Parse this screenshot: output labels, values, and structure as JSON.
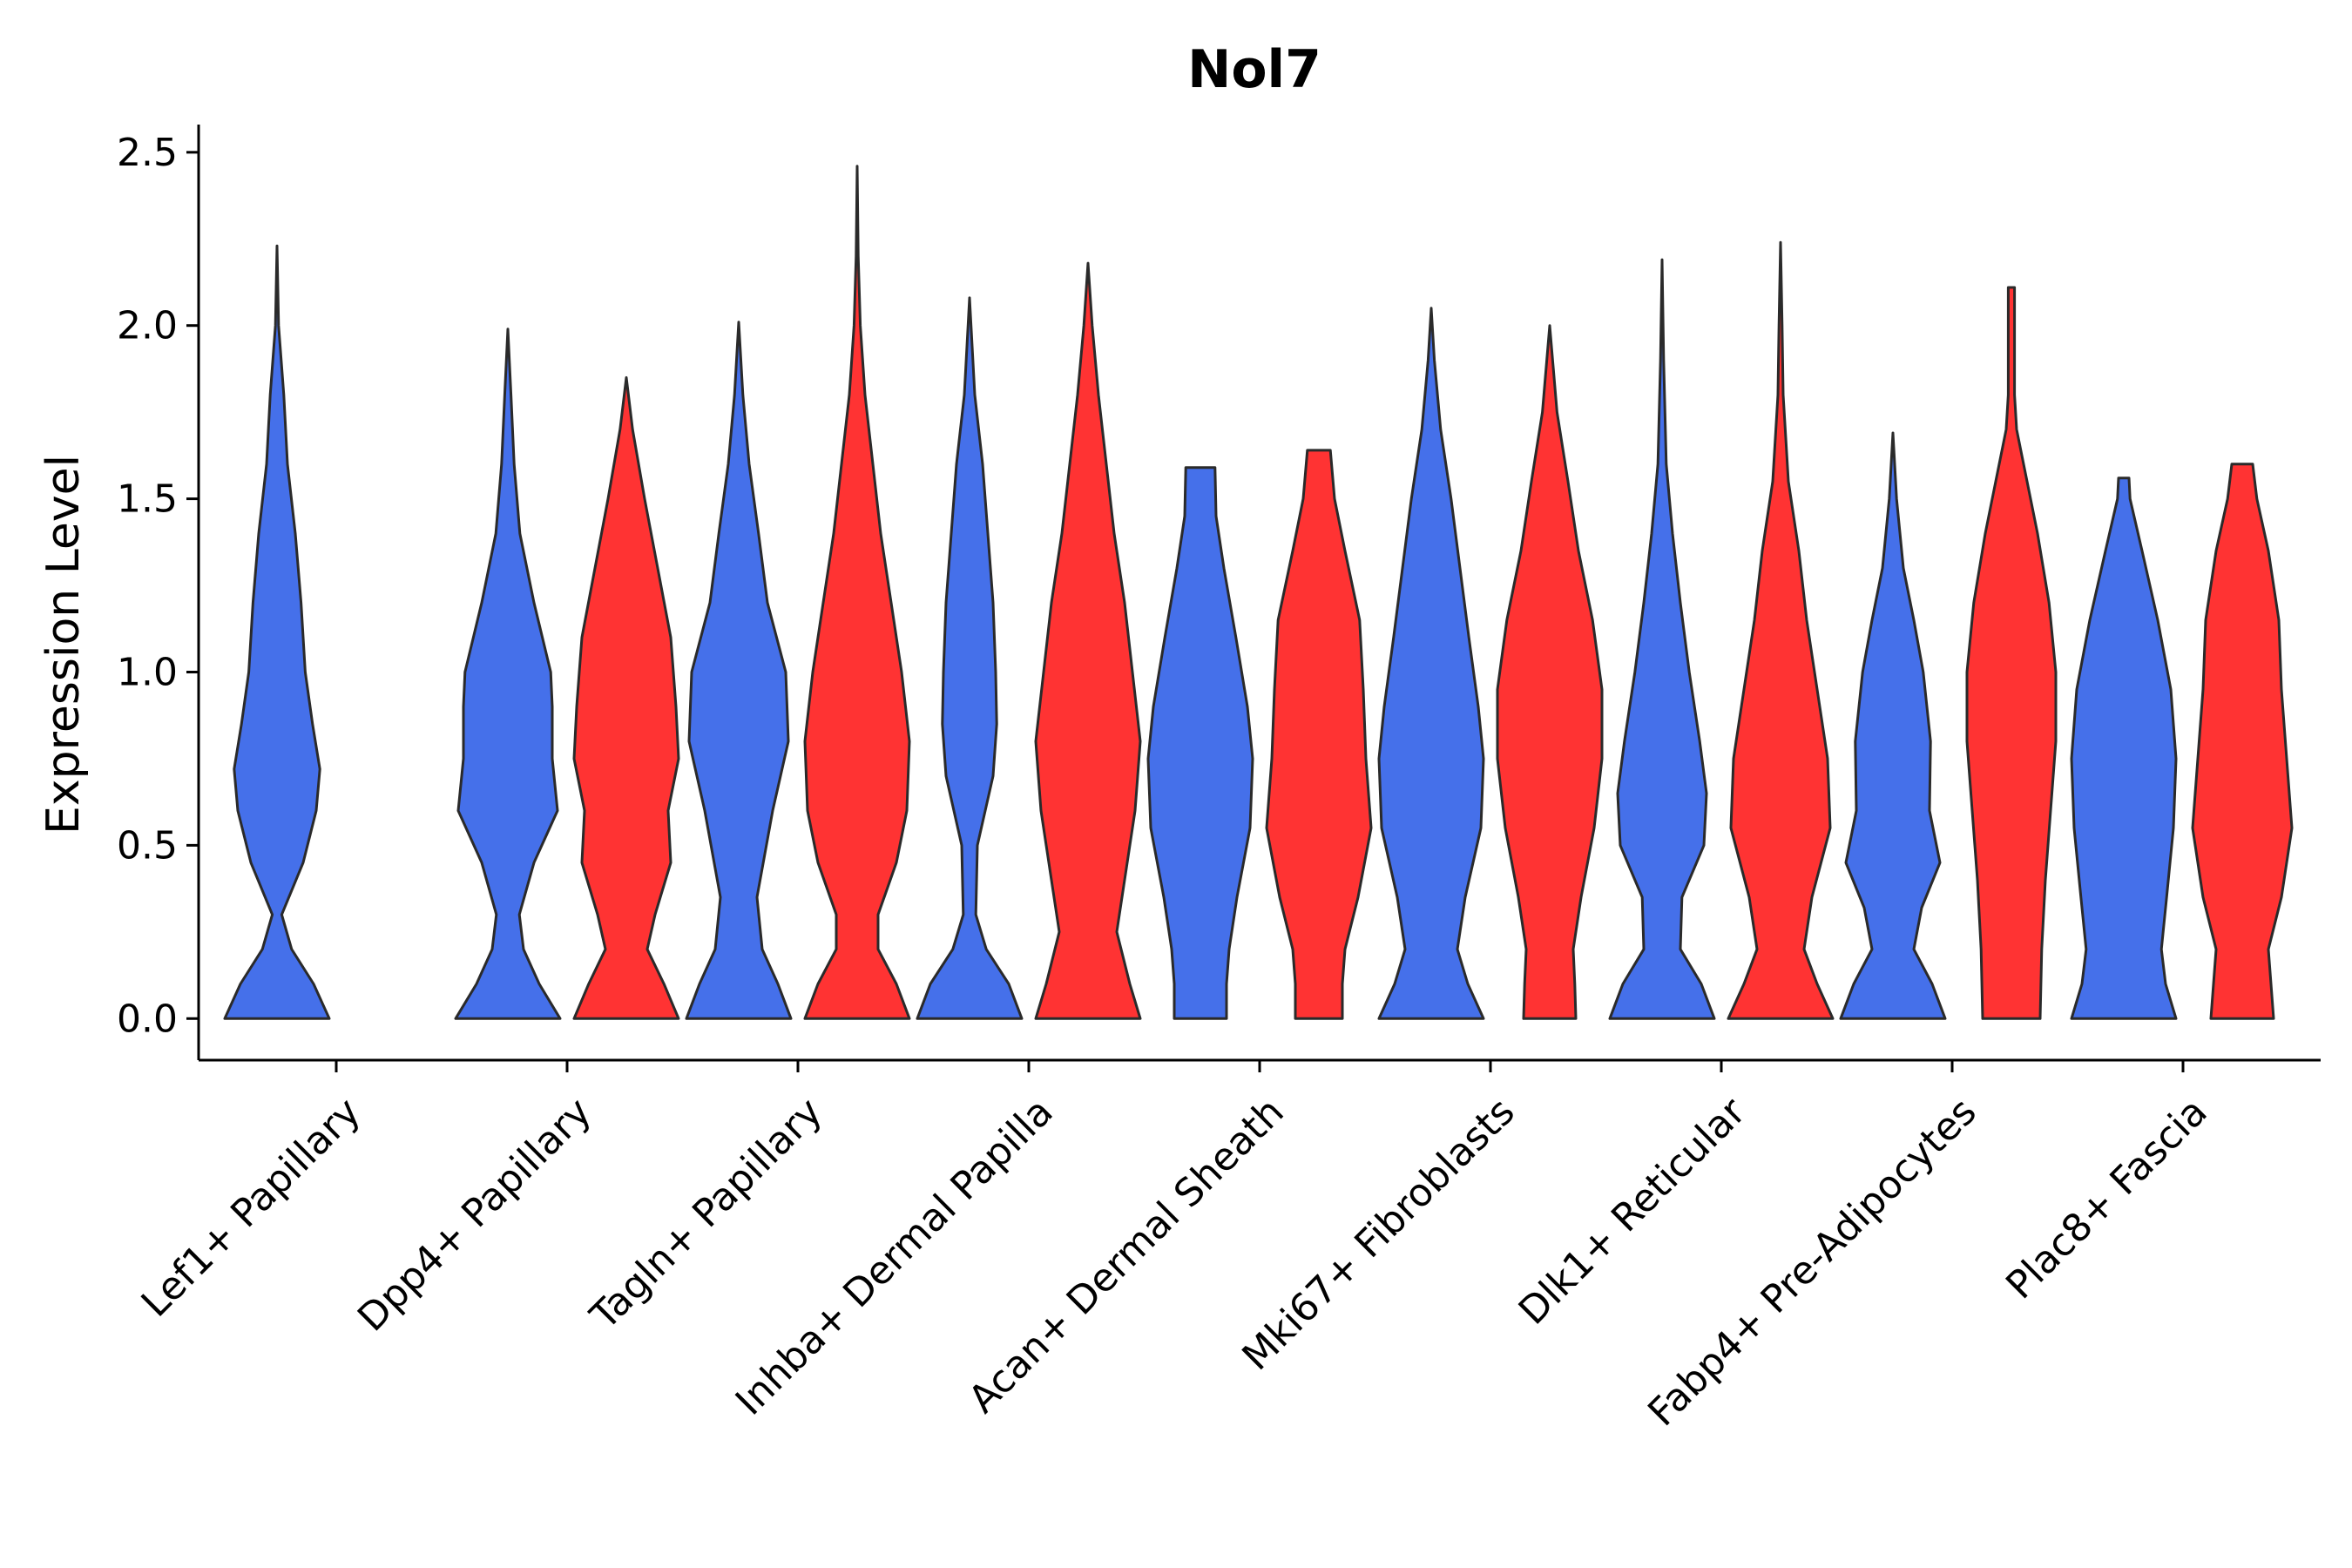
{
  "chart_data": {
    "type": "violin",
    "title": "Nol7",
    "xlabel": "",
    "ylabel": "Expression Level",
    "ylim": [
      -0.12,
      2.58
    ],
    "yticks": [
      "0.0",
      "0.5",
      "1.0",
      "1.5",
      "2.0",
      "2.5"
    ],
    "categories": [
      "Lef1+ Papillary",
      "Dpp4+ Papillary",
      "Tagln+ Papillary",
      "Inhba+ Dermal Papilla",
      "Acan+ Dermal Sheath",
      "Mki67+ Fibroblasts",
      "Dlk1+ Reticular",
      "Fabp4+ Pre-Adipocytes",
      "Plac8+ Fascia"
    ],
    "colors": {
      "blue": "#4570EA",
      "red": "#FF3333"
    },
    "violins": [
      {
        "category": 0,
        "group": "blue",
        "max": 2.23,
        "profile": [
          [
            0,
            1.0
          ],
          [
            0.1,
            0.7
          ],
          [
            0.2,
            0.28
          ],
          [
            0.3,
            0.09
          ],
          [
            0.45,
            0.5
          ],
          [
            0.6,
            0.75
          ],
          [
            0.72,
            0.82
          ],
          [
            0.85,
            0.68
          ],
          [
            1.0,
            0.54
          ],
          [
            1.2,
            0.46
          ],
          [
            1.4,
            0.35
          ],
          [
            1.6,
            0.2
          ],
          [
            1.8,
            0.13
          ],
          [
            2.0,
            0.03
          ],
          [
            2.23,
            0.0
          ]
        ]
      },
      {
        "category": 1,
        "group": "blue",
        "max": 1.99,
        "profile": [
          [
            0,
            1.0
          ],
          [
            0.1,
            0.6
          ],
          [
            0.2,
            0.3
          ],
          [
            0.3,
            0.22
          ],
          [
            0.45,
            0.5
          ],
          [
            0.6,
            0.95
          ],
          [
            0.75,
            0.85
          ],
          [
            0.9,
            0.85
          ],
          [
            1.0,
            0.82
          ],
          [
            1.2,
            0.5
          ],
          [
            1.4,
            0.23
          ],
          [
            1.6,
            0.12
          ],
          [
            1.8,
            0.06
          ],
          [
            1.99,
            0.0
          ]
        ]
      },
      {
        "category": 1,
        "group": "red",
        "max": 1.85,
        "profile": [
          [
            0,
            1.0
          ],
          [
            0.1,
            0.72
          ],
          [
            0.2,
            0.4
          ],
          [
            0.3,
            0.55
          ],
          [
            0.45,
            0.85
          ],
          [
            0.6,
            0.8
          ],
          [
            0.75,
            1.0
          ],
          [
            0.9,
            0.95
          ],
          [
            1.1,
            0.85
          ],
          [
            1.3,
            0.6
          ],
          [
            1.5,
            0.35
          ],
          [
            1.7,
            0.12
          ],
          [
            1.85,
            0.0
          ]
        ]
      },
      {
        "category": 2,
        "group": "blue",
        "max": 2.01,
        "profile": [
          [
            0,
            1.0
          ],
          [
            0.1,
            0.75
          ],
          [
            0.2,
            0.45
          ],
          [
            0.35,
            0.35
          ],
          [
            0.6,
            0.65
          ],
          [
            0.8,
            0.95
          ],
          [
            1.0,
            0.9
          ],
          [
            1.2,
            0.55
          ],
          [
            1.4,
            0.38
          ],
          [
            1.6,
            0.2
          ],
          [
            1.8,
            0.08
          ],
          [
            2.01,
            0.0
          ]
        ]
      },
      {
        "category": 2,
        "group": "red",
        "max": 2.46,
        "profile": [
          [
            0,
            1.0
          ],
          [
            0.1,
            0.75
          ],
          [
            0.2,
            0.4
          ],
          [
            0.3,
            0.4
          ],
          [
            0.45,
            0.75
          ],
          [
            0.6,
            0.95
          ],
          [
            0.8,
            1.0
          ],
          [
            1.0,
            0.85
          ],
          [
            1.2,
            0.65
          ],
          [
            1.4,
            0.45
          ],
          [
            1.6,
            0.3
          ],
          [
            1.8,
            0.15
          ],
          [
            2.0,
            0.06
          ],
          [
            2.2,
            0.02
          ],
          [
            2.46,
            0.0
          ]
        ]
      },
      {
        "category": 3,
        "group": "blue",
        "max": 2.08,
        "profile": [
          [
            0,
            1.0
          ],
          [
            0.1,
            0.75
          ],
          [
            0.2,
            0.32
          ],
          [
            0.3,
            0.12
          ],
          [
            0.5,
            0.15
          ],
          [
            0.7,
            0.45
          ],
          [
            0.85,
            0.52
          ],
          [
            1.0,
            0.5
          ],
          [
            1.2,
            0.45
          ],
          [
            1.4,
            0.35
          ],
          [
            1.6,
            0.25
          ],
          [
            1.8,
            0.1
          ],
          [
            2.08,
            0.0
          ]
        ]
      },
      {
        "category": 3,
        "group": "red",
        "max": 2.18,
        "profile": [
          [
            0,
            1.0
          ],
          [
            0.1,
            0.8
          ],
          [
            0.25,
            0.55
          ],
          [
            0.4,
            0.7
          ],
          [
            0.6,
            0.9
          ],
          [
            0.8,
            1.0
          ],
          [
            1.0,
            0.85
          ],
          [
            1.2,
            0.7
          ],
          [
            1.4,
            0.5
          ],
          [
            1.6,
            0.35
          ],
          [
            1.8,
            0.2
          ],
          [
            2.0,
            0.08
          ],
          [
            2.18,
            0.0
          ]
        ]
      },
      {
        "category": 4,
        "group": "blue",
        "max": 1.59,
        "profile": [
          [
            0,
            0.5
          ],
          [
            0.1,
            0.5
          ],
          [
            0.2,
            0.55
          ],
          [
            0.35,
            0.7
          ],
          [
            0.55,
            0.95
          ],
          [
            0.75,
            1.0
          ],
          [
            0.9,
            0.9
          ],
          [
            1.1,
            0.68
          ],
          [
            1.3,
            0.45
          ],
          [
            1.45,
            0.3
          ],
          [
            1.59,
            0.28
          ]
        ]
      },
      {
        "category": 4,
        "group": "red",
        "max": 1.64,
        "profile": [
          [
            0,
            0.45
          ],
          [
            0.1,
            0.45
          ],
          [
            0.2,
            0.5
          ],
          [
            0.35,
            0.75
          ],
          [
            0.55,
            1.0
          ],
          [
            0.75,
            0.9
          ],
          [
            0.95,
            0.85
          ],
          [
            1.15,
            0.78
          ],
          [
            1.35,
            0.5
          ],
          [
            1.5,
            0.3
          ],
          [
            1.64,
            0.22
          ]
        ]
      },
      {
        "category": 5,
        "group": "blue",
        "max": 2.05,
        "profile": [
          [
            0,
            1.0
          ],
          [
            0.1,
            0.7
          ],
          [
            0.2,
            0.5
          ],
          [
            0.35,
            0.65
          ],
          [
            0.55,
            0.95
          ],
          [
            0.75,
            1.0
          ],
          [
            0.9,
            0.9
          ],
          [
            1.1,
            0.72
          ],
          [
            1.3,
            0.55
          ],
          [
            1.5,
            0.38
          ],
          [
            1.7,
            0.18
          ],
          [
            1.9,
            0.06
          ],
          [
            2.05,
            0.0
          ]
        ]
      },
      {
        "category": 5,
        "group": "red",
        "max": 2.0,
        "profile": [
          [
            0,
            0.5
          ],
          [
            0.1,
            0.48
          ],
          [
            0.2,
            0.45
          ],
          [
            0.35,
            0.6
          ],
          [
            0.55,
            0.85
          ],
          [
            0.75,
            1.0
          ],
          [
            0.95,
            1.0
          ],
          [
            1.15,
            0.82
          ],
          [
            1.35,
            0.55
          ],
          [
            1.55,
            0.35
          ],
          [
            1.75,
            0.14
          ],
          [
            2.0,
            0.0
          ]
        ]
      },
      {
        "category": 6,
        "group": "blue",
        "max": 2.19,
        "profile": [
          [
            0,
            1.0
          ],
          [
            0.1,
            0.75
          ],
          [
            0.2,
            0.35
          ],
          [
            0.35,
            0.38
          ],
          [
            0.5,
            0.8
          ],
          [
            0.65,
            0.85
          ],
          [
            0.8,
            0.72
          ],
          [
            1.0,
            0.52
          ],
          [
            1.2,
            0.35
          ],
          [
            1.4,
            0.2
          ],
          [
            1.6,
            0.08
          ],
          [
            1.9,
            0.03
          ],
          [
            2.19,
            0.0
          ]
        ]
      },
      {
        "category": 6,
        "group": "red",
        "max": 2.24,
        "profile": [
          [
            0,
            1.0
          ],
          [
            0.1,
            0.7
          ],
          [
            0.2,
            0.45
          ],
          [
            0.35,
            0.6
          ],
          [
            0.55,
            0.95
          ],
          [
            0.75,
            0.9
          ],
          [
            0.95,
            0.7
          ],
          [
            1.15,
            0.5
          ],
          [
            1.35,
            0.35
          ],
          [
            1.55,
            0.15
          ],
          [
            1.8,
            0.05
          ],
          [
            2.0,
            0.03
          ],
          [
            2.24,
            0.0
          ]
        ]
      },
      {
        "category": 7,
        "group": "blue",
        "max": 1.69,
        "profile": [
          [
            0,
            1.0
          ],
          [
            0.1,
            0.75
          ],
          [
            0.2,
            0.4
          ],
          [
            0.32,
            0.55
          ],
          [
            0.45,
            0.9
          ],
          [
            0.6,
            0.7
          ],
          [
            0.8,
            0.72
          ],
          [
            1.0,
            0.58
          ],
          [
            1.15,
            0.4
          ],
          [
            1.3,
            0.2
          ],
          [
            1.5,
            0.07
          ],
          [
            1.69,
            0.0
          ]
        ]
      },
      {
        "category": 7,
        "group": "red",
        "max": 2.11,
        "profile": [
          [
            0,
            0.55
          ],
          [
            0.2,
            0.58
          ],
          [
            0.4,
            0.65
          ],
          [
            0.6,
            0.75
          ],
          [
            0.8,
            0.85
          ],
          [
            1.0,
            0.85
          ],
          [
            1.2,
            0.72
          ],
          [
            1.4,
            0.5
          ],
          [
            1.55,
            0.3
          ],
          [
            1.7,
            0.1
          ],
          [
            1.8,
            0.06
          ],
          [
            2.11,
            0.06
          ]
        ]
      },
      {
        "category": 8,
        "group": "blue",
        "max": 1.56,
        "profile": [
          [
            0,
            1.0
          ],
          [
            0.1,
            0.8
          ],
          [
            0.2,
            0.72
          ],
          [
            0.35,
            0.82
          ],
          [
            0.55,
            0.95
          ],
          [
            0.75,
            1.0
          ],
          [
            0.95,
            0.9
          ],
          [
            1.15,
            0.65
          ],
          [
            1.35,
            0.35
          ],
          [
            1.5,
            0.12
          ],
          [
            1.56,
            0.1
          ]
        ]
      },
      {
        "category": 8,
        "group": "red",
        "max": 1.6,
        "profile": [
          [
            0,
            0.6
          ],
          [
            0.1,
            0.55
          ],
          [
            0.2,
            0.5
          ],
          [
            0.35,
            0.75
          ],
          [
            0.55,
            0.95
          ],
          [
            0.75,
            0.85
          ],
          [
            0.95,
            0.75
          ],
          [
            1.15,
            0.7
          ],
          [
            1.35,
            0.5
          ],
          [
            1.5,
            0.28
          ],
          [
            1.6,
            0.2
          ]
        ]
      }
    ]
  }
}
